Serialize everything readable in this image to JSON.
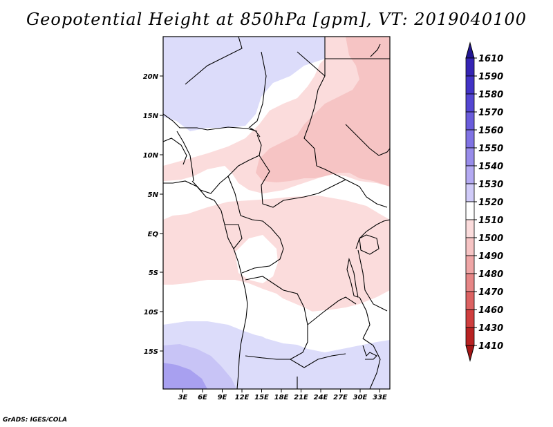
{
  "title": "Geopotential Height at 850hPa [gpm], VT: 2019040100",
  "credit": "GrADS: IGES/COLA",
  "axes": {
    "lat_labels": [
      "20N",
      "15N",
      "10N",
      "5N",
      "EQ",
      "5S",
      "10S",
      "15S"
    ],
    "lon_labels": [
      "3E",
      "6E",
      "9E",
      "12E",
      "15E",
      "18E",
      "21E",
      "24E",
      "27E",
      "30E",
      "33E"
    ]
  },
  "colorbar": {
    "levels": [
      "1610",
      "1590",
      "1580",
      "1570",
      "1560",
      "1550",
      "1540",
      "1530",
      "1520",
      "1510",
      "1500",
      "1490",
      "1480",
      "1470",
      "1460",
      "1430",
      "1410"
    ],
    "colors": [
      "#2a1c9c",
      "#3524b4",
      "#4233c6",
      "#5446d2",
      "#6a5cdc",
      "#8073e4",
      "#988cea",
      "#b4aaf2",
      "#d0cbf8",
      "#ffffff",
      "#fbdcdc",
      "#f6c4c4",
      "#efa6a6",
      "#e68686",
      "#dc6262",
      "#cf3e3e",
      "#b82222"
    ],
    "top_cap_color": "#231693",
    "bottom_cap_color": "#a51616"
  },
  "field_colors": {
    "low_1520": "#dcdcfa",
    "low_1530": "#c8c4f6",
    "low_1540": "#a8a0f0",
    "high_1500": "#fbdcdc",
    "high_1490": "#f6c4c4",
    "neutral": "#ffffff"
  }
}
